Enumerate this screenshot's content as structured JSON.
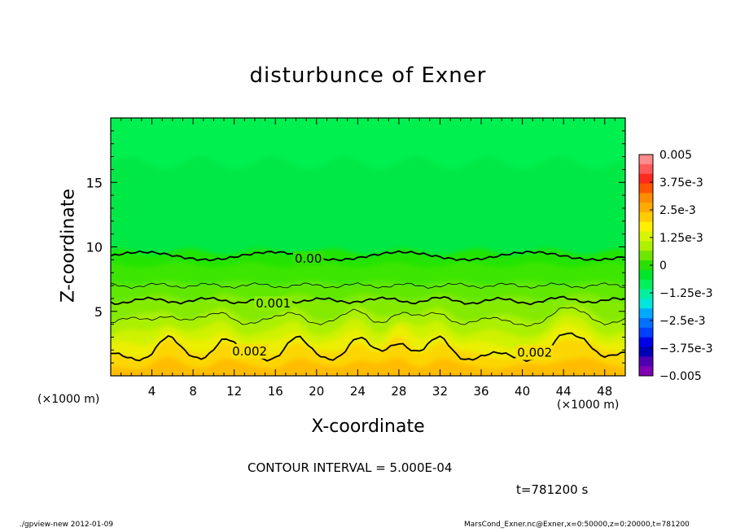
{
  "chart_data": {
    "type": "heatmap",
    "title": "disturbunce of Exner",
    "xlabel": "X-coordinate",
    "ylabel": "Z-coordinate",
    "x_unit_left": "(×1000 m)",
    "x_unit_right": "(×1000 m)",
    "xlim": [
      0,
      50
    ],
    "ylim": [
      0,
      20
    ],
    "x_ticks": [
      4,
      8,
      12,
      16,
      20,
      24,
      28,
      32,
      36,
      40,
      44,
      48
    ],
    "y_ticks": [
      5,
      10,
      15
    ],
    "colorbar": {
      "labels": [
        "0.005",
        "3.75e-3",
        "2.5e-3",
        "1.25e-3",
        "0",
        "-1.25e-3",
        "-2.5e-3",
        "-3.75e-3",
        "-0.005"
      ],
      "values": [
        0.005,
        0.00375,
        0.0025,
        0.00125,
        0,
        -0.00125,
        -0.0025,
        -0.00375,
        -0.005
      ],
      "colors": [
        "#ff8c8c",
        "#ff5a5a",
        "#ff2a1e",
        "#ff5500",
        "#ff8c00",
        "#ffaa00",
        "#ffcc00",
        "#fff000",
        "#d7f500",
        "#aef000",
        "#6ee600",
        "#28e000",
        "#00e628",
        "#00f05a",
        "#00f0a0",
        "#00e6dc",
        "#00aaff",
        "#0070ff",
        "#0040ff",
        "#0000e6",
        "#0000b4",
        "#5000b4",
        "#8000b4"
      ]
    },
    "contour_labels": [
      {
        "text": "0.00",
        "x": 19.2,
        "z": 9.1
      },
      {
        "text": "0.001",
        "x": 15.8,
        "z": 5.6
      },
      {
        "text": "0.002",
        "x": 13.5,
        "z": 1.9
      },
      {
        "text": "0.002",
        "x": 41.2,
        "z": 1.8
      }
    ],
    "contour_interval_text": "CONTOUR INTERVAL = 5.000E-04",
    "time_text": "t=781200 s"
  },
  "footer": {
    "left": "./gpview-new  2012-01-09",
    "right": "MarsCond_Exner.nc@Exner,x=0:50000,z=0:20000,t=781200"
  }
}
